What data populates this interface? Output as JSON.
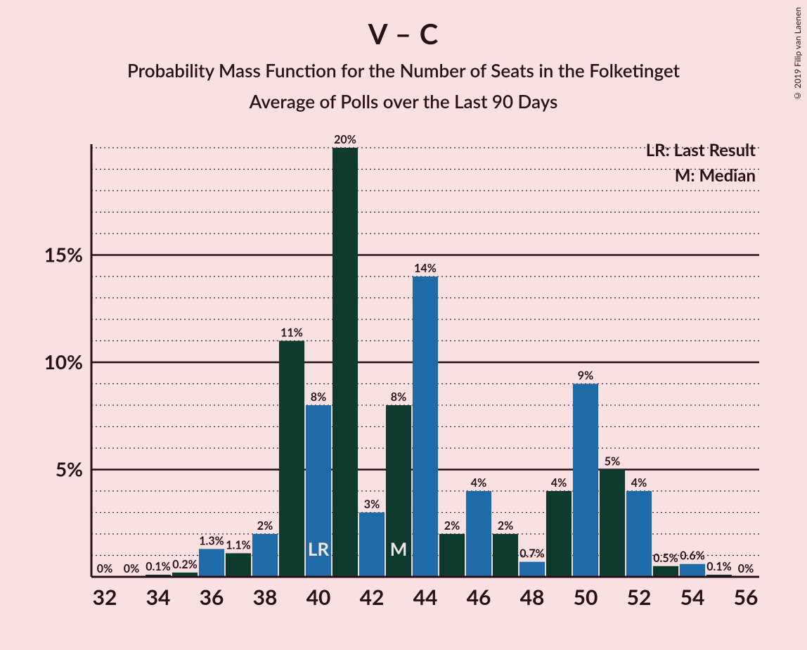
{
  "title": "V – C",
  "subtitle1": "Probability Mass Function for the Number of Seats in the Folketinget",
  "subtitle2": "Average of Polls over the Last 90 Days",
  "copyright": "© 2019 Filip van Laenen",
  "legend": {
    "lr": "LR: Last Result",
    "m": "M: Median"
  },
  "chart": {
    "type": "bar",
    "background_color": "#fae1e1",
    "axis_color": "#2a0f18",
    "major_grid_color": "#2a0f18",
    "minor_grid_color": "#3a2028",
    "series_colors": {
      "green": "#0e3b2e",
      "blue": "#1f6ba8"
    },
    "ylim": [
      0,
      20
    ],
    "y_major_ticks": [
      5,
      10,
      15
    ],
    "y_minor_step": 1,
    "x_start": 32,
    "x_end": 56,
    "x_tick_step": 2,
    "bars": [
      {
        "x": 32,
        "color": "green",
        "value": 0,
        "label": "0%"
      },
      {
        "x": 33,
        "color": "blue",
        "value": 0,
        "label": "0%"
      },
      {
        "x": 34,
        "color": "green",
        "value": 0.1,
        "label": "0.1%"
      },
      {
        "x": 35,
        "color": "green",
        "value": 0.2,
        "label": "0.2%"
      },
      {
        "x": 36,
        "color": "blue",
        "value": 1.3,
        "label": "1.3%"
      },
      {
        "x": 37,
        "color": "green",
        "value": 1.1,
        "label": "1.1%"
      },
      {
        "x": 38,
        "color": "blue",
        "value": 2,
        "label": "2%"
      },
      {
        "x": 39,
        "color": "green",
        "value": 11,
        "label": "11%"
      },
      {
        "x": 40,
        "color": "blue",
        "value": 8,
        "label": "8%",
        "marker": "LR"
      },
      {
        "x": 41,
        "color": "green",
        "value": 20,
        "label": "20%"
      },
      {
        "x": 42,
        "color": "blue",
        "value": 3,
        "label": "3%"
      },
      {
        "x": 43,
        "color": "green",
        "value": 8,
        "label": "8%",
        "marker": "M"
      },
      {
        "x": 44,
        "color": "blue",
        "value": 14,
        "label": "14%"
      },
      {
        "x": 45,
        "color": "green",
        "value": 2,
        "label": "2%"
      },
      {
        "x": 46,
        "color": "blue",
        "value": 4,
        "label": "4%"
      },
      {
        "x": 47,
        "color": "green",
        "value": 2,
        "label": "2%"
      },
      {
        "x": 48,
        "color": "blue",
        "value": 0.7,
        "label": "0.7%"
      },
      {
        "x": 49,
        "color": "green",
        "value": 4,
        "label": "4%"
      },
      {
        "x": 50,
        "color": "blue",
        "value": 9,
        "label": "9%"
      },
      {
        "x": 51,
        "color": "green",
        "value": 5,
        "label": "5%"
      },
      {
        "x": 52,
        "color": "blue",
        "value": 4,
        "label": "4%"
      },
      {
        "x": 53,
        "color": "green",
        "value": 0.5,
        "label": "0.5%"
      },
      {
        "x": 54,
        "color": "blue",
        "value": 0.6,
        "label": "0.6%"
      },
      {
        "x": 55,
        "color": "green",
        "value": 0.1,
        "label": "0.1%"
      },
      {
        "x": 56,
        "color": "blue",
        "value": 0,
        "label": "0%"
      }
    ]
  }
}
